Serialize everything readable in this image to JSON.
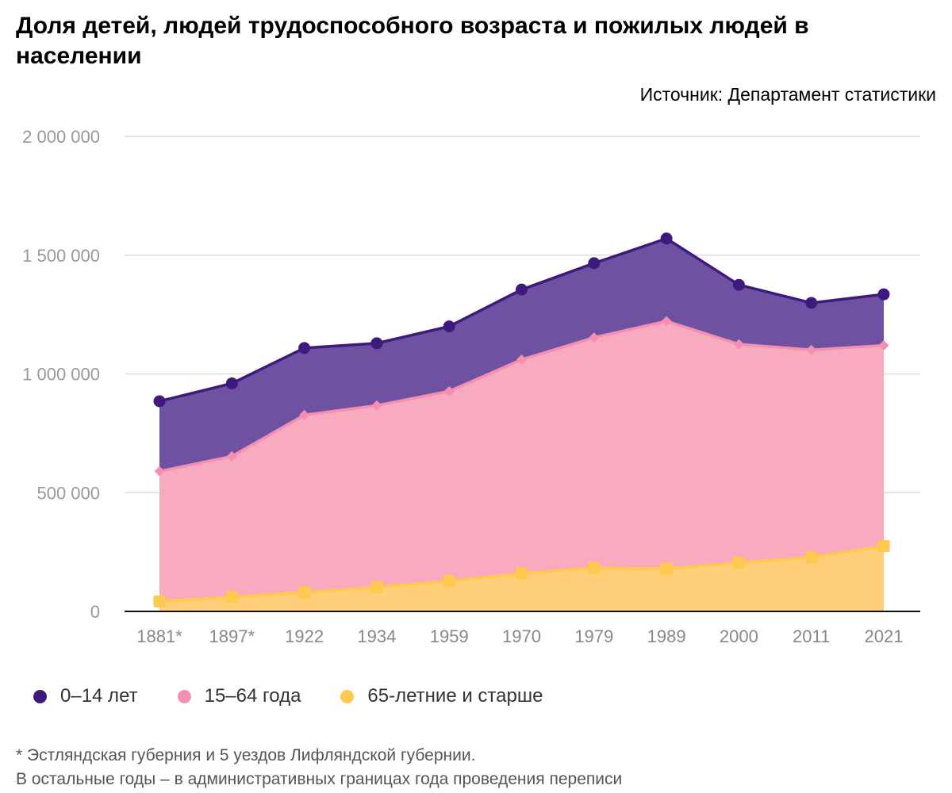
{
  "title": "Доля детей, людей трудоспособного возраста и пожилых людей в населении",
  "source": "Источник: Департамент статистики",
  "notes": [
    "* Эстляндская губерния и 5 уездов Лифляндской губернии.",
    "В остальные годы – в административных границах года проведения переписи"
  ],
  "chart_data": {
    "type": "area",
    "stacked": true,
    "categories": [
      "1881*",
      "1897*",
      "1922",
      "1934",
      "1959",
      "1970",
      "1979",
      "1989",
      "2000",
      "2011",
      "2021"
    ],
    "series": [
      {
        "name": "65-летние и старше",
        "color": "#FFC94D",
        "fill": "#FFD079",
        "marker": "square",
        "values": [
          42000,
          60000,
          80000,
          102000,
          127000,
          160000,
          183000,
          180000,
          205000,
          228000,
          275000
        ]
      },
      {
        "name": "15–64 года",
        "color": "#F48FB1",
        "fill": "#F8AABE",
        "marker": "diamond",
        "values": [
          548000,
          593000,
          747000,
          765000,
          800000,
          900000,
          970000,
          1042000,
          920000,
          873000,
          845000
        ]
      },
      {
        "name": "0–14 лет",
        "color": "#3E1A7E",
        "fill": "#6E51A1",
        "marker": "circle",
        "values": [
          295000,
          307000,
          282000,
          262000,
          273000,
          295000,
          313000,
          348000,
          250000,
          198000,
          215000
        ]
      }
    ],
    "ylim": [
      0,
      2000000
    ],
    "yticks": [
      0,
      500000,
      1000000,
      1500000,
      2000000
    ],
    "ytick_labels": [
      "0",
      "500 000",
      "1 000 000",
      "1 500 000",
      "2 000 000"
    ],
    "grid": true,
    "legend_position": "bottom-left",
    "legend_order": [
      "0–14 лет",
      "15–64 года",
      "65-летние и старше"
    ]
  }
}
